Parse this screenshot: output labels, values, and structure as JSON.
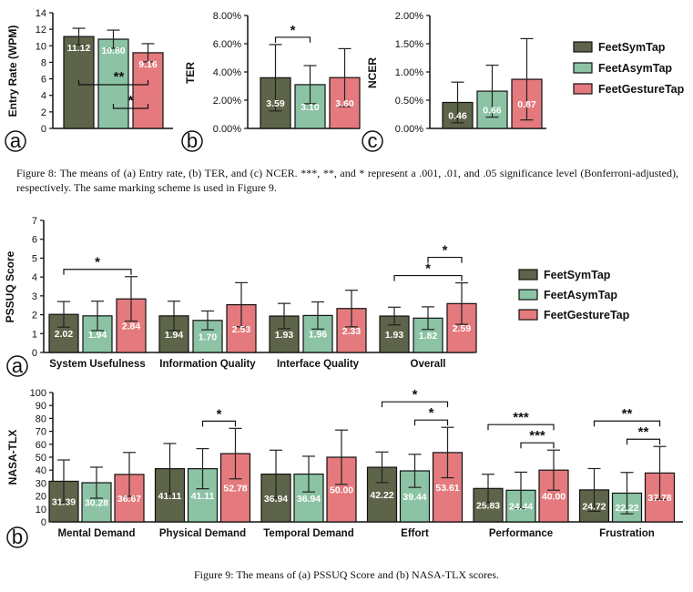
{
  "colors": {
    "FeetSymTap": "#5d6449",
    "FeetAsymTap": "#8bc3a4",
    "FeetGestureTap": "#e47a7d"
  },
  "legend": [
    "FeetSymTap",
    "FeetAsymTap",
    "FeetGestureTap"
  ],
  "captions": {
    "fig8": "Figure 8: The means of (a) Entry rate, (b) TER, and (c) NCER. ***, **, and * represent a .001, .01, and .05 significance level (Bonferroni-adjusted), respectively. The same marking scheme is used in Figure 9.",
    "fig9": "Figure 9: The means of (a) PSSUQ Score and (b) NASA-TLX scores."
  },
  "chart_data": [
    {
      "id": "entry-rate",
      "type": "bar",
      "panel": "a",
      "ylabel": "Entry Rate (WPM)",
      "ylim": [
        0,
        14
      ],
      "yticks": [
        0,
        2,
        4,
        6,
        8,
        10,
        12,
        14
      ],
      "ytick_labels": [
        "0",
        "2",
        "4",
        "6",
        "8",
        "10",
        "12",
        "14"
      ],
      "groups": [
        {
          "label": "",
          "values": [
            11.12,
            10.8,
            9.16
          ],
          "errors": [
            1.0,
            1.1,
            1.1
          ],
          "labels": [
            "11.12",
            "10.80",
            "9.16"
          ]
        }
      ],
      "significance": [
        {
          "group": 0,
          "from": 0,
          "to": 2,
          "level": "1",
          "mark": "**"
        },
        {
          "group": 0,
          "from": 1,
          "to": 2,
          "level": "0",
          "mark": "*"
        }
      ]
    },
    {
      "id": "ter",
      "type": "bar",
      "panel": "b",
      "ylabel": "TER",
      "ylim": [
        0,
        8
      ],
      "yticks": [
        0,
        2,
        4,
        6,
        8
      ],
      "ytick_labels": [
        "0.00%",
        "2.00%",
        "4.00%",
        "6.00%",
        "8.00%"
      ],
      "groups": [
        {
          "label": "",
          "values": [
            3.59,
            3.1,
            3.6
          ],
          "errors": [
            2.35,
            1.35,
            2.05
          ],
          "labels": [
            "3.59",
            "3.10",
            "3.60"
          ]
        }
      ],
      "significance": [
        {
          "group": 0,
          "from": 0,
          "to": 1,
          "level": "0",
          "mark": "*"
        }
      ]
    },
    {
      "id": "ncer",
      "type": "bar",
      "panel": "c",
      "ylabel": "NCER",
      "ylim": [
        0,
        2
      ],
      "yticks": [
        0,
        0.5,
        1.0,
        1.5,
        2.0
      ],
      "ytick_labels": [
        "0.00%",
        "0.50%",
        "1.00%",
        "1.50%",
        "2.00%"
      ],
      "groups": [
        {
          "label": "",
          "values": [
            0.46,
            0.66,
            0.87
          ],
          "errors": [
            0.36,
            0.46,
            0.72
          ],
          "labels": [
            "0.46",
            "0.66",
            "0.87"
          ]
        }
      ],
      "significance": []
    },
    {
      "id": "pssuq",
      "type": "bar",
      "panel": "a",
      "ylabel": "PSSUQ Score",
      "ylim": [
        0,
        7
      ],
      "yticks": [
        0,
        1,
        2,
        3,
        4,
        5,
        6,
        7
      ],
      "ytick_labels": [
        "0",
        "1",
        "2",
        "3",
        "4",
        "5",
        "6",
        "7"
      ],
      "groups": [
        {
          "label": "System Usefulness",
          "values": [
            2.02,
            1.94,
            2.84
          ],
          "errors": [
            0.68,
            0.78,
            1.18
          ],
          "labels": [
            "2.02",
            "1.94",
            "2.84"
          ]
        },
        {
          "label": "Information Quality",
          "values": [
            1.94,
            1.7,
            2.53
          ],
          "errors": [
            0.78,
            0.5,
            1.17
          ],
          "labels": [
            "1.94",
            "1.70",
            "2.53"
          ]
        },
        {
          "label": "Interface Quality",
          "values": [
            1.93,
            1.96,
            2.33
          ],
          "errors": [
            0.67,
            0.72,
            0.97
          ],
          "labels": [
            "1.93",
            "1.96",
            "2.33"
          ]
        },
        {
          "label": "Overall",
          "values": [
            1.93,
            1.82,
            2.59
          ],
          "errors": [
            0.47,
            0.6,
            1.1
          ],
          "labels": [
            "1.93",
            "1.82",
            "2.59"
          ]
        }
      ],
      "significance": [
        {
          "group": 0,
          "from": 0,
          "to": 2,
          "level": "0",
          "mark": "*"
        },
        {
          "group": 3,
          "from": 0,
          "to": 2,
          "level": "0",
          "mark": "*"
        },
        {
          "group": 3,
          "from": 1,
          "to": 2,
          "level": "1",
          "mark": "*"
        }
      ]
    },
    {
      "id": "nasa-tlx",
      "type": "bar",
      "panel": "b",
      "ylabel": "NASA-TLX",
      "ylim": [
        0,
        100
      ],
      "yticks": [
        0,
        10,
        20,
        30,
        40,
        50,
        60,
        70,
        80,
        90,
        100
      ],
      "ytick_labels": [
        "0",
        "10",
        "20",
        "30",
        "40",
        "50",
        "60",
        "70",
        "80",
        "90",
        "100"
      ],
      "groups": [
        {
          "label": "Mental Demand",
          "values": [
            31.39,
            30.28,
            36.67
          ],
          "errors": [
            16.5,
            12.0,
            17.0
          ],
          "labels": [
            "31.39",
            "30.28",
            "36.67"
          ]
        },
        {
          "label": "Physical Demand",
          "values": [
            41.11,
            41.11,
            52.78
          ],
          "errors": [
            19.5,
            15.5,
            19.5
          ],
          "labels": [
            "41.11",
            "41.11",
            "52.78"
          ]
        },
        {
          "label": "Temporal Demand",
          "values": [
            36.94,
            36.94,
            50.0
          ],
          "errors": [
            18.5,
            13.8,
            21.0
          ],
          "labels": [
            "36.94",
            "36.94",
            "50.00"
          ]
        },
        {
          "label": "Effort",
          "values": [
            42.22,
            39.44,
            53.61
          ],
          "errors": [
            11.8,
            12.8,
            19.5
          ],
          "labels": [
            "42.22",
            "39.44",
            "53.61"
          ]
        },
        {
          "label": "Performance",
          "values": [
            25.83,
            24.44,
            40.0
          ],
          "errors": [
            11.0,
            14.0,
            15.5
          ],
          "labels": [
            "25.83",
            "24.44",
            "40.00"
          ]
        },
        {
          "label": "Frustration",
          "values": [
            24.72,
            22.22,
            37.78
          ],
          "errors": [
            16.5,
            16.0,
            20.5
          ],
          "labels": [
            "24.72",
            "22.22",
            "37.78"
          ]
        }
      ],
      "significance": [
        {
          "group": 1,
          "from": 1,
          "to": 2,
          "level": "0",
          "mark": "*"
        },
        {
          "group": 3,
          "from": 0,
          "to": 2,
          "level": "1",
          "mark": "*"
        },
        {
          "group": 3,
          "from": 1,
          "to": 2,
          "level": "0",
          "mark": "*"
        },
        {
          "group": 4,
          "from": 0,
          "to": 2,
          "level": "1",
          "mark": "***"
        },
        {
          "group": 4,
          "from": 1,
          "to": 2,
          "level": "0",
          "mark": "***"
        },
        {
          "group": 5,
          "from": 0,
          "to": 2,
          "level": "1",
          "mark": "**"
        },
        {
          "group": 5,
          "from": 1,
          "to": 2,
          "level": "0",
          "mark": "**"
        }
      ]
    }
  ]
}
